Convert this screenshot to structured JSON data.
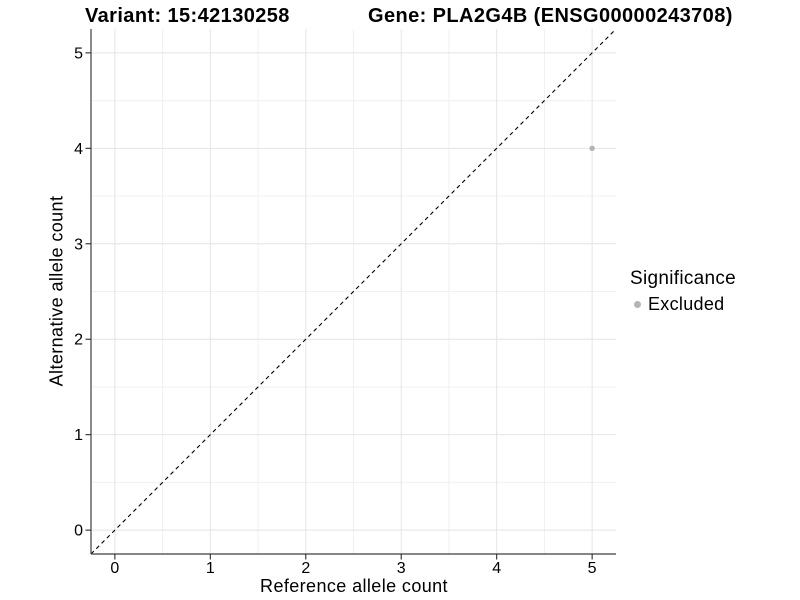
{
  "header": {
    "variant_title": "Variant: 15:42130258",
    "gene_title": "Gene: PLA2G4B (ENSG00000243708)"
  },
  "chart_data": {
    "type": "scatter",
    "title_left": "Variant: 15:42130258",
    "title_right": "Gene: PLA2G4B (ENSG00000243708)",
    "xlabel": "Reference allele count",
    "ylabel": "Alternative allele count",
    "xlim": [
      -0.25,
      5.25
    ],
    "ylim": [
      -0.25,
      5.25
    ],
    "xticks": [
      0,
      1,
      2,
      3,
      4,
      5
    ],
    "yticks": [
      0,
      1,
      2,
      3,
      4,
      5
    ],
    "grid": {
      "major": true,
      "minor": true,
      "minor_step": 0.5
    },
    "reference_line": {
      "slope": 1,
      "intercept": 0,
      "linestyle": "dashed",
      "color": "#000000"
    },
    "series": [
      {
        "name": "Excluded",
        "color": "#b4b4b4",
        "points": [
          {
            "x": 5,
            "y": 4
          }
        ]
      }
    ],
    "legend": {
      "title": "Significance",
      "position": "right",
      "items": [
        {
          "label": "Excluded",
          "color": "#b4b4b4"
        }
      ]
    },
    "style": {
      "background": "#ffffff",
      "grid_major_color": "#e4e4e4",
      "grid_minor_color": "#f0f0f0",
      "axis_line_color": "#3d3d3d",
      "tick_color": "#2b2b2b",
      "text_color": "#000000"
    }
  }
}
